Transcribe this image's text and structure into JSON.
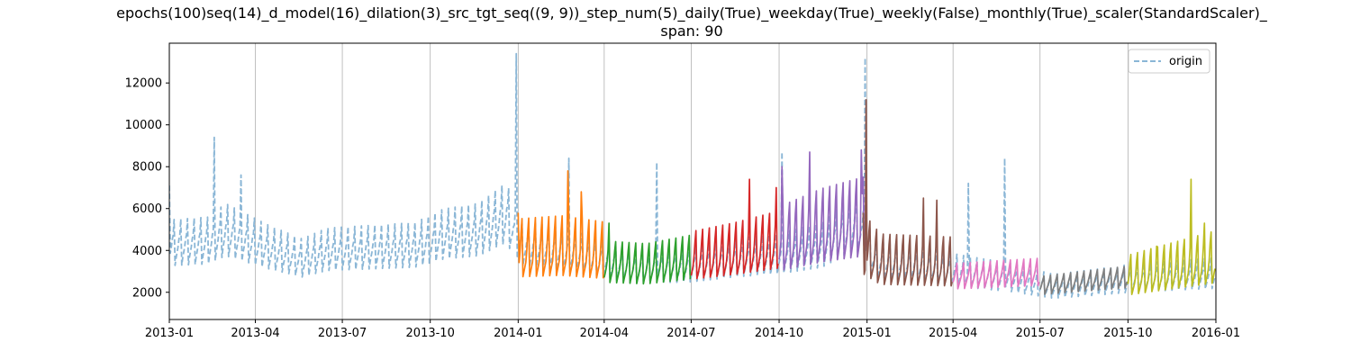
{
  "chart_data": {
    "type": "line",
    "title": "epochs(100)seq(14)_d_model(16)_dilation(3)_src_tgt_seq((9, 9))_step_num(5)_daily(True)_weekday(True)_weekly(False)_monthly(True)_scaler(StandardScaler)_",
    "subtitle": "span: 90",
    "xlabel": "",
    "ylabel": "",
    "x_range": [
      "2013-01-01",
      "2016-01-01"
    ],
    "ylim": [
      700,
      13900
    ],
    "x_ticks": [
      "2013-01",
      "2013-04",
      "2013-07",
      "2013-10",
      "2014-01",
      "2014-04",
      "2014-07",
      "2014-10",
      "2015-01",
      "2015-04",
      "2015-07",
      "2015-10",
      "2016-01"
    ],
    "y_ticks": [
      2000,
      4000,
      6000,
      8000,
      10000,
      12000
    ],
    "grid": "vertical",
    "legend": {
      "placement": "top-right",
      "entries": [
        "origin"
      ]
    },
    "series": [
      {
        "name": "origin",
        "style": "dashed",
        "color": "#8ab6d6",
        "start": "2013-01-01",
        "end": "2015-12-31",
        "weekly_pattern": [
          1.3,
          0.78,
          0.86,
          0.92,
          0.98,
          1.07,
          1.12
        ],
        "level_points": [
          [
            "2013-01-01",
            4200
          ],
          [
            "2013-02-10",
            4300
          ],
          [
            "2013-03-01",
            4800
          ],
          [
            "2013-04-15",
            4000
          ],
          [
            "2013-05-20",
            3500
          ],
          [
            "2013-06-15",
            3900
          ],
          [
            "2013-08-01",
            4000
          ],
          [
            "2013-09-15",
            4100
          ],
          [
            "2013-10-15",
            4600
          ],
          [
            "2013-11-20",
            4800
          ],
          [
            "2013-12-20",
            5600
          ],
          [
            "2014-01-01",
            4200
          ],
          [
            "2014-03-01",
            3800
          ],
          [
            "2014-05-01",
            3100
          ],
          [
            "2014-07-01",
            3200
          ],
          [
            "2014-08-15",
            3500
          ],
          [
            "2014-10-01",
            3700
          ],
          [
            "2014-11-15",
            4100
          ],
          [
            "2014-12-20",
            5200
          ],
          [
            "2015-01-10",
            3400
          ],
          [
            "2015-03-01",
            3200
          ],
          [
            "2015-04-10",
            2900
          ],
          [
            "2015-06-01",
            2600
          ],
          [
            "2015-07-15",
            2200
          ],
          [
            "2015-09-01",
            2400
          ],
          [
            "2015-10-10",
            2600
          ],
          [
            "2015-12-31",
            2800
          ]
        ],
        "spikes": [
          [
            "2013-01-01",
            7100
          ],
          [
            "2013-02-17",
            9400
          ],
          [
            "2013-03-17",
            7600
          ],
          [
            "2013-12-30",
            13400
          ],
          [
            "2014-02-23",
            8400
          ],
          [
            "2014-05-26",
            8200
          ],
          [
            "2014-10-04",
            8700
          ],
          [
            "2014-12-30",
            13200
          ],
          [
            "2015-04-17",
            7200
          ],
          [
            "2015-05-25",
            8400
          ]
        ]
      },
      {
        "name": "",
        "color": "#ff7f0e",
        "start": "2014-01-01",
        "end": "2014-03-31",
        "weekly_pattern": [
          1.45,
          0.72,
          0.78,
          0.84,
          0.9,
          1.05,
          1.28
        ],
        "level_points": [
          [
            "2014-01-01",
            3800
          ],
          [
            "2014-02-15",
            3900
          ],
          [
            "2014-03-31",
            3700
          ]
        ],
        "spikes": [
          [
            "2014-01-01",
            5800
          ],
          [
            "2014-02-22",
            7800
          ],
          [
            "2014-03-08",
            6800
          ]
        ]
      },
      {
        "name": "",
        "color": "#2ca02c",
        "start": "2014-04-01",
        "end": "2014-06-30",
        "weekly_pattern": [
          1.35,
          0.75,
          0.82,
          0.88,
          0.95,
          1.05,
          1.22
        ],
        "level_points": [
          [
            "2014-04-01",
            3300
          ],
          [
            "2014-05-15",
            3200
          ],
          [
            "2014-06-30",
            3500
          ]
        ],
        "spikes": [
          [
            "2014-04-06",
            5300
          ]
        ]
      },
      {
        "name": "",
        "color": "#d62728",
        "start": "2014-07-01",
        "end": "2014-09-30",
        "weekly_pattern": [
          1.4,
          0.75,
          0.8,
          0.86,
          0.93,
          1.06,
          1.25
        ],
        "level_points": [
          [
            "2014-07-01",
            3500
          ],
          [
            "2014-08-15",
            3800
          ],
          [
            "2014-09-30",
            4200
          ]
        ],
        "spikes": [
          [
            "2014-08-31",
            7400
          ],
          [
            "2014-09-28",
            7000
          ]
        ]
      },
      {
        "name": "",
        "color": "#9467bd",
        "start": "2014-10-01",
        "end": "2014-12-31",
        "weekly_pattern": [
          1.45,
          0.72,
          0.78,
          0.85,
          0.92,
          1.06,
          1.3
        ],
        "level_points": [
          [
            "2014-10-01",
            4200
          ],
          [
            "2014-11-15",
            4800
          ],
          [
            "2014-12-31",
            5200
          ]
        ],
        "spikes": [
          [
            "2014-10-04",
            8000
          ],
          [
            "2014-11-02",
            8700
          ],
          [
            "2014-12-26",
            8800
          ]
        ]
      },
      {
        "name": "",
        "color": "#8c564b",
        "start": "2014-12-28",
        "end": "2015-03-31",
        "weekly_pattern": [
          1.45,
          0.72,
          0.78,
          0.85,
          0.92,
          1.05,
          1.3
        ],
        "level_points": [
          [
            "2014-12-28",
            4000
          ],
          [
            "2015-01-15",
            3300
          ],
          [
            "2015-03-31",
            3200
          ]
        ],
        "spikes": [
          [
            "2014-12-31",
            11200
          ],
          [
            "2015-03-01",
            6500
          ],
          [
            "2015-03-15",
            6400
          ]
        ]
      },
      {
        "name": "",
        "color": "#e377c2",
        "start": "2015-04-01",
        "end": "2015-06-30",
        "weekly_pattern": [
          1.25,
          0.8,
          0.86,
          0.92,
          0.98,
          1.05,
          1.15
        ],
        "level_points": [
          [
            "2015-04-01",
            2700
          ],
          [
            "2015-05-15",
            2800
          ],
          [
            "2015-06-30",
            2900
          ]
        ],
        "spikes": []
      },
      {
        "name": "",
        "color": "#7f7f7f",
        "start": "2015-07-01",
        "end": "2015-09-30",
        "weekly_pattern": [
          1.2,
          0.82,
          0.88,
          0.93,
          0.98,
          1.05,
          1.12
        ],
        "level_points": [
          [
            "2015-07-01",
            2300
          ],
          [
            "2015-08-15",
            2500
          ],
          [
            "2015-09-30",
            2700
          ]
        ],
        "spikes": []
      },
      {
        "name": "",
        "color": "#bcbd22",
        "start": "2015-10-01",
        "end": "2015-12-31",
        "weekly_pattern": [
          1.45,
          0.72,
          0.78,
          0.85,
          0.92,
          1.06,
          1.3
        ],
        "level_points": [
          [
            "2015-10-01",
            2600
          ],
          [
            "2015-11-15",
            3000
          ],
          [
            "2015-12-31",
            3400
          ]
        ],
        "spikes": [
          [
            "2015-10-31",
            4200
          ],
          [
            "2015-12-06",
            7400
          ],
          [
            "2015-12-20",
            5300
          ]
        ]
      }
    ]
  }
}
